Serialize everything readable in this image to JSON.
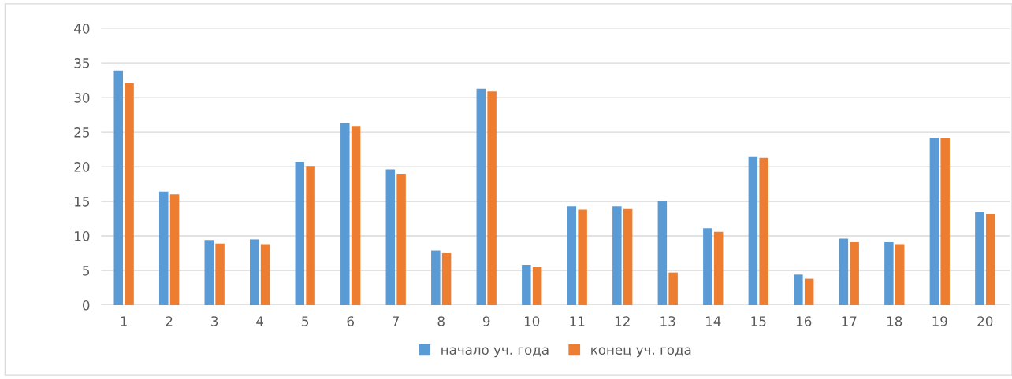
{
  "chart_data": {
    "type": "bar",
    "categories": [
      "1",
      "2",
      "3",
      "4",
      "5",
      "6",
      "7",
      "8",
      "9",
      "10",
      "11",
      "12",
      "13",
      "14",
      "15",
      "16",
      "17",
      "18",
      "19",
      "20"
    ],
    "series": [
      {
        "name": "начало уч. года",
        "color": "#5b9bd5",
        "values": [
          33.9,
          16.4,
          9.4,
          9.5,
          20.7,
          26.3,
          19.6,
          7.9,
          31.3,
          5.8,
          14.3,
          14.3,
          15.1,
          11.1,
          21.4,
          4.4,
          9.6,
          9.1,
          24.2,
          13.5
        ]
      },
      {
        "name": "конец уч. года",
        "color": "#ed7d31",
        "values": [
          32.1,
          16.0,
          8.9,
          8.8,
          20.1,
          25.9,
          19.0,
          7.5,
          30.9,
          5.5,
          13.8,
          13.9,
          4.7,
          10.6,
          21.3,
          3.8,
          9.1,
          8.8,
          24.1,
          13.2
        ]
      }
    ],
    "ylim": [
      0,
      40
    ],
    "yticks": [
      0,
      5,
      10,
      15,
      20,
      25,
      30,
      35,
      40
    ],
    "grid": "y",
    "legend": "bottom"
  }
}
